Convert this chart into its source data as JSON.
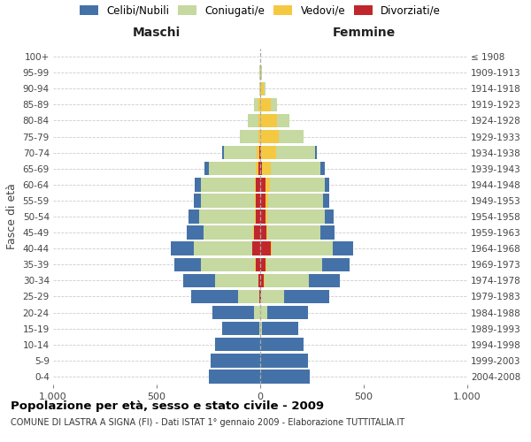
{
  "age_groups": [
    "0-4",
    "5-9",
    "10-14",
    "15-19",
    "20-24",
    "25-29",
    "30-34",
    "35-39",
    "40-44",
    "45-49",
    "50-54",
    "55-59",
    "60-64",
    "65-69",
    "70-74",
    "75-79",
    "80-84",
    "85-89",
    "90-94",
    "95-99",
    "100+"
  ],
  "birth_years": [
    "2004-2008",
    "1999-2003",
    "1994-1998",
    "1989-1993",
    "1984-1988",
    "1979-1983",
    "1974-1978",
    "1969-1973",
    "1964-1968",
    "1959-1963",
    "1954-1958",
    "1949-1953",
    "1944-1948",
    "1939-1943",
    "1934-1938",
    "1929-1933",
    "1924-1928",
    "1919-1923",
    "1914-1918",
    "1909-1913",
    "≤ 1908"
  ],
  "males": {
    "celibi": [
      250,
      240,
      220,
      180,
      200,
      230,
      150,
      130,
      110,
      80,
      50,
      35,
      30,
      20,
      10,
      0,
      0,
      0,
      0,
      0,
      0
    ],
    "coniugati": [
      0,
      0,
      0,
      5,
      30,
      100,
      210,
      260,
      280,
      240,
      270,
      260,
      260,
      230,
      160,
      90,
      50,
      20,
      5,
      5,
      0
    ],
    "vedovi": [
      0,
      0,
      0,
      0,
      0,
      0,
      0,
      5,
      0,
      5,
      5,
      5,
      5,
      10,
      10,
      10,
      10,
      10,
      0,
      0,
      0
    ],
    "divorziati": [
      0,
      0,
      0,
      0,
      0,
      5,
      10,
      20,
      40,
      30,
      20,
      20,
      20,
      10,
      5,
      0,
      0,
      0,
      0,
      0,
      0
    ]
  },
  "females": {
    "nubili": [
      240,
      230,
      210,
      175,
      195,
      220,
      150,
      130,
      100,
      70,
      45,
      30,
      25,
      20,
      10,
      0,
      0,
      0,
      0,
      0,
      0
    ],
    "coniugate": [
      0,
      0,
      0,
      10,
      35,
      110,
      215,
      270,
      295,
      255,
      275,
      265,
      265,
      240,
      190,
      120,
      60,
      30,
      10,
      5,
      0
    ],
    "vedove": [
      0,
      0,
      0,
      0,
      0,
      0,
      5,
      5,
      5,
      5,
      10,
      15,
      20,
      40,
      70,
      90,
      80,
      50,
      15,
      5,
      0
    ],
    "divorziate": [
      0,
      0,
      0,
      0,
      0,
      5,
      15,
      25,
      50,
      30,
      25,
      25,
      25,
      10,
      5,
      0,
      0,
      0,
      0,
      0,
      0
    ]
  },
  "colors": {
    "celibi": "#4472a8",
    "coniugati": "#c5d9a0",
    "vedovi": "#f5c842",
    "divorziati": "#c0272d"
  },
  "xlim": 1000,
  "title": "Popolazione per età, sesso e stato civile - 2009",
  "subtitle": "COMUNE DI LASTRA A SIGNA (FI) - Dati ISTAT 1° gennaio 2009 - Elaborazione TUTTITALIA.IT",
  "ylabel": "Fasce di età",
  "xlabel_left": "Maschi",
  "xlabel_right": "Femmine"
}
